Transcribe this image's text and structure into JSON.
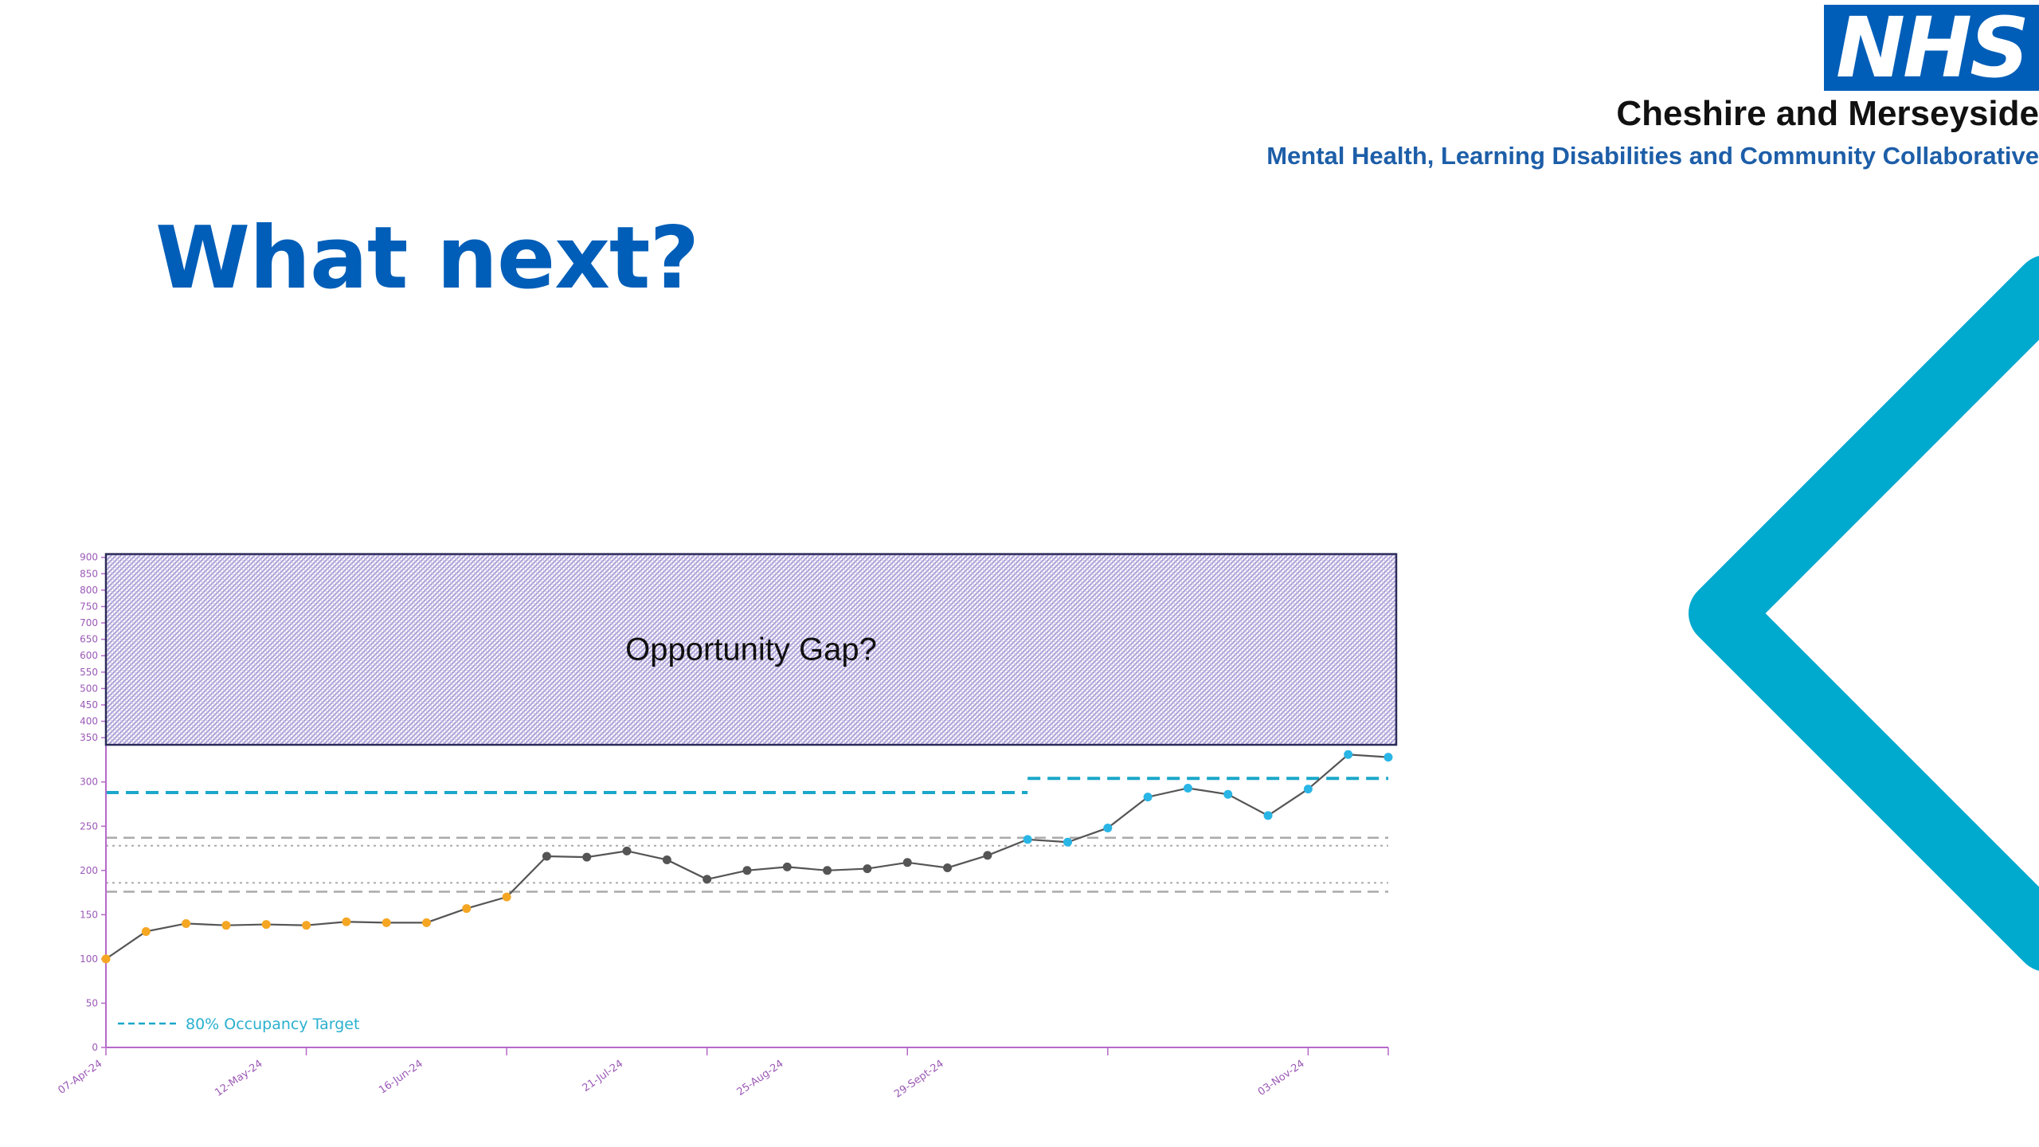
{
  "header": {
    "logo_text": "NHS",
    "org_name": "Cheshire and Merseyside",
    "org_subtitle": "Mental Health, Learning Disabilities and Community Collaborative"
  },
  "slide": {
    "title": "What next?"
  },
  "colors": {
    "brand_blue": "#005EB8",
    "accent_cyan": "#00A9CE",
    "line": "#555555",
    "point_orange": "#f5a623",
    "point_grey": "#555555",
    "point_cyan": "#29b6e6",
    "target_cyan": "#1aa7c9",
    "limit_grey": "#aaaaaa",
    "axis_purple": "#b569c9",
    "gap_fill": "#a89bd4",
    "gap_border": "#2c2c5a"
  },
  "chart_data": {
    "type": "line",
    "yticks": [
      0,
      50,
      100,
      150,
      200,
      250,
      300,
      350,
      400,
      450,
      500,
      550,
      600,
      650,
      700,
      750,
      800,
      850,
      900
    ],
    "xtick_labels": [
      "07-Apr-24",
      "12-May-24",
      "16-Jun-24",
      "21-Jul-24",
      "25-Aug-24",
      "29-Sept-24",
      "03-Nov-24"
    ],
    "x": [
      "07-Apr-24",
      "14-Apr-24",
      "21-Apr-24",
      "28-Apr-24",
      "05-May-24",
      "12-May-24",
      "19-May-24",
      "26-May-24",
      "02-Jun-24",
      "09-Jun-24",
      "16-Jun-24",
      "23-Jun-24",
      "30-Jun-24",
      "07-Jul-24",
      "14-Jul-24",
      "21-Jul-24",
      "28-Jul-24",
      "04-Aug-24",
      "11-Aug-24",
      "18-Aug-24",
      "25-Aug-24",
      "01-Sep-24",
      "08-Sep-24",
      "15-Sep-24",
      "22-Sep-24",
      "29-Sep-24",
      "06-Oct-24",
      "13-Oct-24",
      "20-Oct-24",
      "27-Oct-24",
      "03-Nov-24",
      "10-Nov-24",
      "17-Nov-24"
    ],
    "values": [
      100,
      131,
      140,
      138,
      139,
      138,
      142,
      141,
      141,
      157,
      170,
      216,
      215,
      222,
      212,
      190,
      200,
      204,
      200,
      202,
      209,
      203,
      217,
      235,
      232,
      248,
      283,
      293,
      286,
      262,
      292,
      331,
      328
    ],
    "point_groups": [
      "orange",
      "orange",
      "orange",
      "orange",
      "orange",
      "orange",
      "orange",
      "orange",
      "orange",
      "orange",
      "orange",
      "grey",
      "grey",
      "grey",
      "grey",
      "grey",
      "grey",
      "grey",
      "grey",
      "grey",
      "grey",
      "grey",
      "grey",
      "cyan",
      "cyan",
      "cyan",
      "cyan",
      "cyan",
      "cyan",
      "cyan",
      "cyan",
      "cyan",
      "cyan"
    ],
    "target_segments": [
      {
        "from": "07-Apr-24",
        "to": "15-Sep-24",
        "value": 288
      },
      {
        "from": "15-Sep-24",
        "to": "17-Nov-24",
        "value": 304
      }
    ],
    "limit_lines": [
      {
        "style": "dashed",
        "value": 237
      },
      {
        "style": "dotted",
        "value": 228
      },
      {
        "style": "dotted",
        "value": 186
      },
      {
        "style": "dashed",
        "value": 176
      }
    ],
    "legend": [
      {
        "name": "80% Occupancy Target",
        "style": "dashed"
      }
    ],
    "annotation": {
      "text": "Opportunity Gap?",
      "from_value": 342,
      "to_value": 910
    }
  }
}
